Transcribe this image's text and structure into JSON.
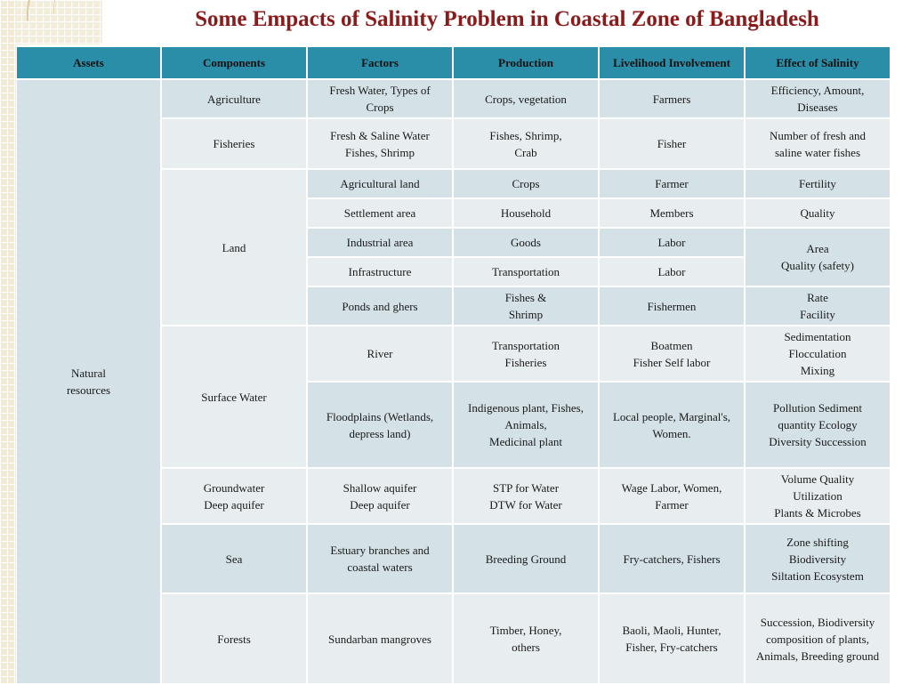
{
  "title": "Some Empacts of Salinity Problem in Coastal Zone of Bangladesh",
  "headers": [
    "Assets",
    "Components",
    "Factors",
    "Production",
    "Livelihood  Involvement",
    "Effect of Salinity"
  ],
  "asset": [
    "Natural",
    "resources"
  ],
  "rows": {
    "agriculture": {
      "component": [
        "Agriculture"
      ],
      "factors": [
        "Fresh Water, Types of",
        "Crops"
      ],
      "production": [
        "Crops, vegetation"
      ],
      "livelihood": [
        "Farmers"
      ],
      "effect": [
        "Efficiency, Amount,",
        "Diseases"
      ]
    },
    "fisheries": {
      "component": [
        "Fisheries"
      ],
      "factors": [
        "Fresh & Saline Water",
        "Fishes, Shrimp"
      ],
      "production": [
        "Fishes, Shrimp,",
        "Crab"
      ],
      "livelihood": [
        "Fisher"
      ],
      "effect": [
        "Number of fresh and",
        "saline water fishes"
      ]
    },
    "land": {
      "component": [
        "Land"
      ],
      "agri_land": {
        "factors": [
          "Agricultural land"
        ],
        "production": [
          "Crops"
        ],
        "livelihood": [
          "Farmer"
        ],
        "effect": [
          "Fertility"
        ]
      },
      "settlement": {
        "factors": [
          "Settlement area"
        ],
        "production": [
          "Household"
        ],
        "livelihood": [
          "Members"
        ],
        "effect": [
          "Quality"
        ]
      },
      "industrial": {
        "factors": [
          "Industrial area"
        ],
        "production": [
          "Goods"
        ],
        "livelihood": [
          "Labor"
        ]
      },
      "industrial_infra_effect": [
        "Area",
        "Quality (safety)"
      ],
      "infrastructure": {
        "factors": [
          "Infrastructure"
        ],
        "production": [
          "Transportation"
        ],
        "livelihood": [
          "Labor"
        ]
      },
      "ponds": {
        "factors": [
          "Ponds and ghers"
        ],
        "production": [
          "Fishes &",
          "Shrimp"
        ],
        "livelihood": [
          "Fishermen"
        ],
        "effect": [
          "Rate",
          "Facility"
        ]
      }
    },
    "surface_water": {
      "component": [
        "Surface Water"
      ],
      "river": {
        "factors": [
          "River"
        ],
        "production": [
          "Transportation",
          "Fisheries"
        ],
        "livelihood": [
          "Boatmen",
          "Fisher  Self labor"
        ],
        "effect": [
          "Sedimentation",
          "Flocculation",
          "Mixing"
        ]
      },
      "floodplains": {
        "factors": [
          "Floodplains (Wetlands,",
          "depress land)"
        ],
        "production": [
          "Indigenous plant, Fishes,",
          "Animals,",
          "Medicinal plant"
        ],
        "livelihood": [
          "Local people, Marginal's,",
          "Women."
        ],
        "effect": [
          "Pollution Sediment",
          "quantity  Ecology",
          "Diversity  Succession"
        ]
      }
    },
    "groundwater": {
      "component": [
        "Groundwater",
        "Deep aquifer"
      ],
      "factors": [
        "Shallow aquifer",
        "Deep aquifer"
      ],
      "production": [
        "STP for Water",
        "DTW for Water"
      ],
      "livelihood": [
        "Wage Labor, Women,",
        "Farmer"
      ],
      "effect": [
        "Volume Quality",
        "Utilization",
        "Plants & Microbes"
      ]
    },
    "sea": {
      "component": [
        "Sea"
      ],
      "factors": [
        "Estuary branches and",
        "coastal waters"
      ],
      "production": [
        "Breeding Ground"
      ],
      "livelihood": [
        "Fry-catchers, Fishers"
      ],
      "effect": [
        "Zone shifting",
        "Biodiversity",
        "Siltation  Ecosystem"
      ]
    },
    "forests": {
      "component": [
        "Forests"
      ],
      "factors": [
        "Sundarban mangroves"
      ],
      "production": [
        "Timber, Honey,",
        "others"
      ],
      "livelihood": [
        "Baoli, Maoli, Hunter,",
        "Fisher, Fry-catchers"
      ],
      "effect": [
        "Succession, Biodiversity",
        "composition of plants,",
        "Animals, Breeding ground"
      ]
    }
  }
}
